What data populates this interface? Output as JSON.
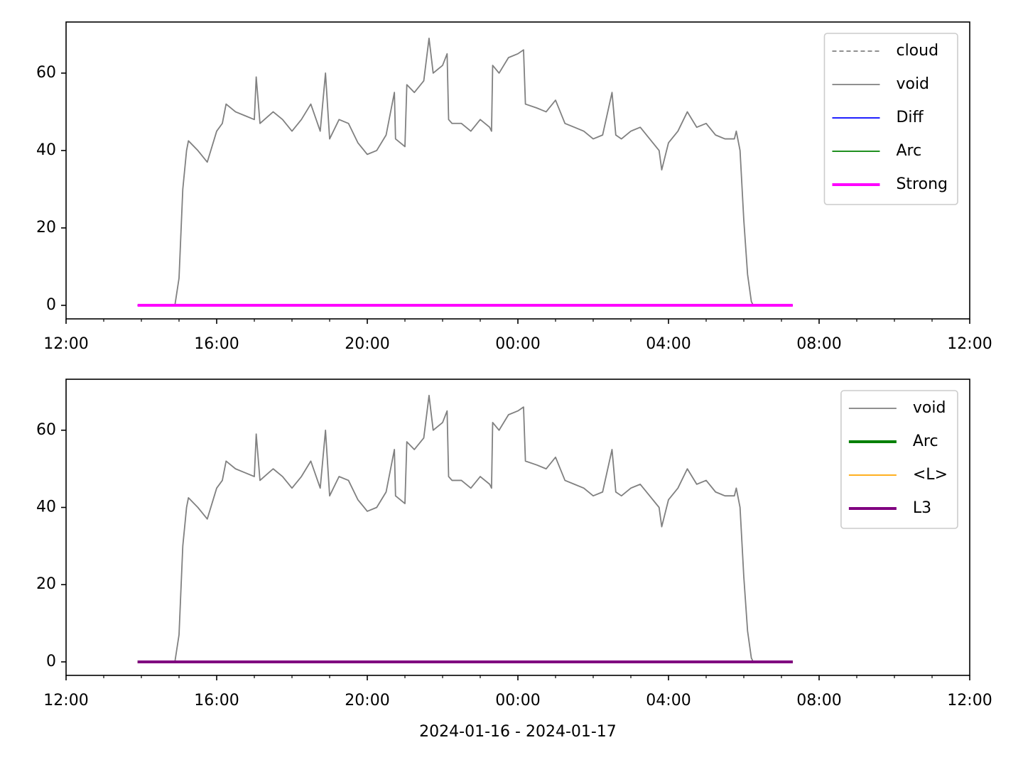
{
  "chart_data": [
    {
      "type": "line",
      "legend": "upper right",
      "xlim": [
        0,
        24
      ],
      "ylim": [
        -3.5,
        73.2
      ],
      "xticks": [
        {
          "value": 0,
          "label": "12:00"
        },
        {
          "value": 4,
          "label": "16:00"
        },
        {
          "value": 8,
          "label": "20:00"
        },
        {
          "value": 12,
          "label": "00:00"
        },
        {
          "value": 16,
          "label": "04:00"
        },
        {
          "value": 20,
          "label": "08:00"
        },
        {
          "value": 24,
          "label": "12:00"
        }
      ],
      "xminorticks": [
        1,
        2,
        3,
        5,
        6,
        7,
        9,
        10,
        11,
        13,
        14,
        15,
        17,
        18,
        19,
        21,
        22,
        23
      ],
      "yticks": [
        0,
        20,
        40,
        60
      ],
      "series": [
        {
          "name": "cloud",
          "color": "#808080",
          "style": "dashed",
          "x": [],
          "values": []
        },
        {
          "name": "void",
          "color": "#808080",
          "style": "thin",
          "x": [
            2.89,
            3.0,
            3.1,
            3.2,
            3.25,
            3.5,
            3.75,
            4.0,
            4.15,
            4.25,
            4.5,
            4.75,
            5.0,
            5.05,
            5.15,
            5.5,
            5.75,
            6.0,
            6.25,
            6.5,
            6.75,
            6.89,
            7.0,
            7.25,
            7.5,
            7.75,
            8.0,
            8.25,
            8.5,
            8.72,
            8.75,
            9.0,
            9.05,
            9.25,
            9.5,
            9.64,
            9.75,
            10.0,
            10.12,
            10.16,
            10.25,
            10.5,
            10.75,
            11.0,
            11.25,
            11.3,
            11.33,
            11.5,
            11.75,
            12.0,
            12.15,
            12.2,
            12.5,
            12.75,
            13.0,
            13.25,
            13.5,
            13.75,
            14.0,
            14.25,
            14.5,
            14.6,
            14.75,
            15.0,
            15.25,
            15.5,
            15.75,
            15.82,
            16.0,
            16.25,
            16.5,
            16.75,
            17.0,
            17.25,
            17.5,
            17.75,
            17.8,
            17.9,
            18.0,
            18.1,
            18.2,
            18.25
          ],
          "values": [
            0,
            7,
            30,
            40,
            42.5,
            40,
            37,
            45,
            47,
            52,
            50,
            49,
            48,
            59,
            47,
            50,
            48,
            45,
            48,
            52,
            45,
            60,
            43,
            48,
            47,
            42,
            39,
            40,
            44,
            55,
            43,
            41,
            57,
            55,
            58,
            69,
            60,
            62,
            65,
            48,
            47,
            47,
            45,
            48,
            46,
            45,
            62,
            60,
            64,
            65,
            66,
            52,
            51,
            50,
            53,
            47,
            46,
            45,
            43,
            44,
            55,
            44,
            43,
            45,
            46,
            43,
            40,
            35,
            42,
            45,
            50,
            46,
            47,
            44,
            43,
            43,
            45,
            40,
            22,
            8,
            1,
            0
          ]
        },
        {
          "name": "Diff",
          "color": "#0000ff",
          "style": "thin",
          "x": [
            1.9,
            19.3
          ],
          "values": [
            0,
            0
          ]
        },
        {
          "name": "Arc",
          "color": "#008000",
          "style": "thin",
          "x": [
            1.9,
            19.3
          ],
          "values": [
            0,
            0
          ]
        },
        {
          "name": "Strong",
          "color": "#ff00ff",
          "style": "thick",
          "x": [
            1.9,
            19.3
          ],
          "values": [
            0,
            0
          ]
        }
      ]
    },
    {
      "type": "line",
      "legend": "upper right",
      "xlabel": "2024-01-16 - 2024-01-17",
      "xlim": [
        0,
        24
      ],
      "ylim": [
        -3.5,
        73.2
      ],
      "xticks": [
        {
          "value": 0,
          "label": "12:00"
        },
        {
          "value": 4,
          "label": "16:00"
        },
        {
          "value": 8,
          "label": "20:00"
        },
        {
          "value": 12,
          "label": "00:00"
        },
        {
          "value": 16,
          "label": "04:00"
        },
        {
          "value": 20,
          "label": "08:00"
        },
        {
          "value": 24,
          "label": "12:00"
        }
      ],
      "xminorticks": [
        1,
        2,
        3,
        5,
        6,
        7,
        9,
        10,
        11,
        13,
        14,
        15,
        17,
        18,
        19,
        21,
        22,
        23
      ],
      "yticks": [
        0,
        20,
        40,
        60
      ],
      "series": [
        {
          "name": "void",
          "color": "#808080",
          "style": "thin",
          "x": [
            2.89,
            3.0,
            3.1,
            3.2,
            3.25,
            3.5,
            3.75,
            4.0,
            4.15,
            4.25,
            4.5,
            4.75,
            5.0,
            5.05,
            5.15,
            5.5,
            5.75,
            6.0,
            6.25,
            6.5,
            6.75,
            6.89,
            7.0,
            7.25,
            7.5,
            7.75,
            8.0,
            8.25,
            8.5,
            8.72,
            8.75,
            9.0,
            9.05,
            9.25,
            9.5,
            9.64,
            9.75,
            10.0,
            10.12,
            10.16,
            10.25,
            10.5,
            10.75,
            11.0,
            11.25,
            11.3,
            11.33,
            11.5,
            11.75,
            12.0,
            12.15,
            12.2,
            12.5,
            12.75,
            13.0,
            13.25,
            13.5,
            13.75,
            14.0,
            14.25,
            14.5,
            14.6,
            14.75,
            15.0,
            15.25,
            15.5,
            15.75,
            15.82,
            16.0,
            16.25,
            16.5,
            16.75,
            17.0,
            17.25,
            17.5,
            17.75,
            17.8,
            17.9,
            18.0,
            18.1,
            18.2,
            18.25
          ],
          "values": [
            0,
            7,
            30,
            40,
            42.5,
            40,
            37,
            45,
            47,
            52,
            50,
            49,
            48,
            59,
            47,
            50,
            48,
            45,
            48,
            52,
            45,
            60,
            43,
            48,
            47,
            42,
            39,
            40,
            44,
            55,
            43,
            41,
            57,
            55,
            58,
            69,
            60,
            62,
            65,
            48,
            47,
            47,
            45,
            48,
            46,
            45,
            62,
            60,
            64,
            65,
            66,
            52,
            51,
            50,
            53,
            47,
            46,
            45,
            43,
            44,
            55,
            44,
            43,
            45,
            46,
            43,
            40,
            35,
            42,
            45,
            50,
            46,
            47,
            44,
            43,
            43,
            45,
            40,
            22,
            8,
            1,
            0
          ]
        },
        {
          "name": "Arc",
          "color": "#008000",
          "style": "thick",
          "x": [
            1.9,
            19.3
          ],
          "values": [
            0,
            0
          ]
        },
        {
          "name": "<L>",
          "color": "#ffa500",
          "style": "thin",
          "x": [
            1.9,
            19.3
          ],
          "values": [
            0,
            0
          ]
        },
        {
          "name": "L3",
          "color": "#800080",
          "style": "thick",
          "x": [
            1.9,
            19.3
          ],
          "values": [
            0,
            0
          ]
        }
      ]
    }
  ]
}
